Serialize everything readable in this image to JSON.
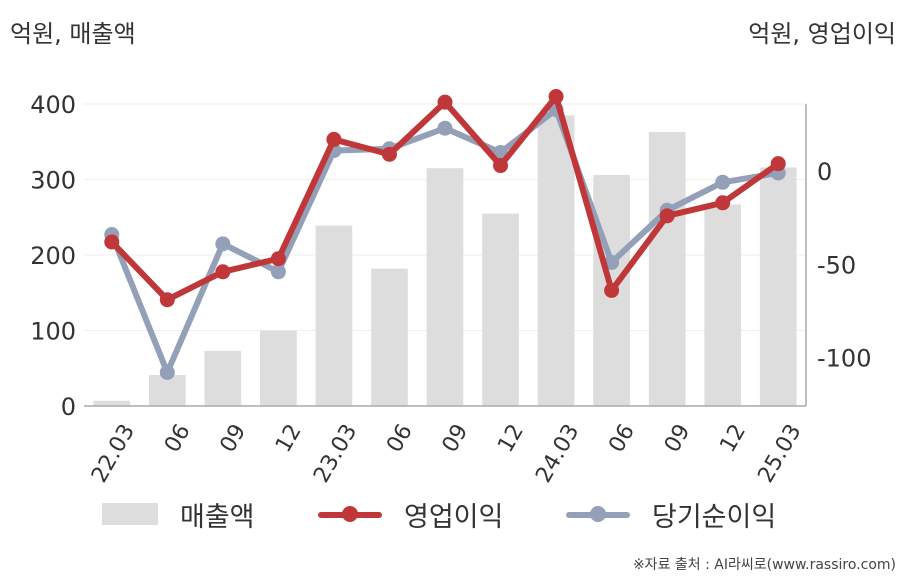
{
  "units": {
    "left": "억원, 매출액",
    "right": "억원, 영업이익"
  },
  "legend": {
    "revenue": "매출액",
    "operating_profit": "영업이익",
    "net_income": "당기순이익"
  },
  "source": "※자료 출처 : AI라씨로(www.rassiro.com)",
  "colors": {
    "revenue": "#dddddd",
    "operating_profit": "#c0373a",
    "net_income": "#93a0b8",
    "axis": "#aaaaaa",
    "grid": "#eeeeee"
  },
  "chart_data": {
    "type": "bar",
    "categories": [
      "22.03",
      "06",
      "09",
      "12",
      "23.03",
      "06",
      "09",
      "12",
      "24.03",
      "06",
      "09",
      "12",
      "25.03"
    ],
    "series": [
      {
        "name": "매출액",
        "type": "bar",
        "axis": "left",
        "values": [
          7,
          41,
          73,
          100,
          239,
          182,
          315,
          255,
          385,
          306,
          363,
          267,
          316
        ]
      },
      {
        "name": "영업이익",
        "type": "line",
        "axis": "right",
        "values": [
          -38,
          -69,
          -54,
          -47,
          17,
          9,
          37,
          3,
          40,
          -64,
          -24,
          -17,
          4
        ]
      },
      {
        "name": "당기순이익",
        "type": "line",
        "axis": "right",
        "values": [
          -34,
          -108,
          -39,
          -54,
          11,
          12,
          23,
          10,
          33,
          -49,
          -21,
          -6,
          -1
        ]
      }
    ],
    "y_left": {
      "ylim": [
        0,
        400
      ],
      "ticks": [
        0,
        100,
        200,
        300,
        400
      ]
    },
    "y_right": {
      "ylim": [
        -126,
        36
      ],
      "ticks": [
        -100,
        -50,
        0
      ]
    },
    "grid": true,
    "legend_position": "bottom"
  }
}
